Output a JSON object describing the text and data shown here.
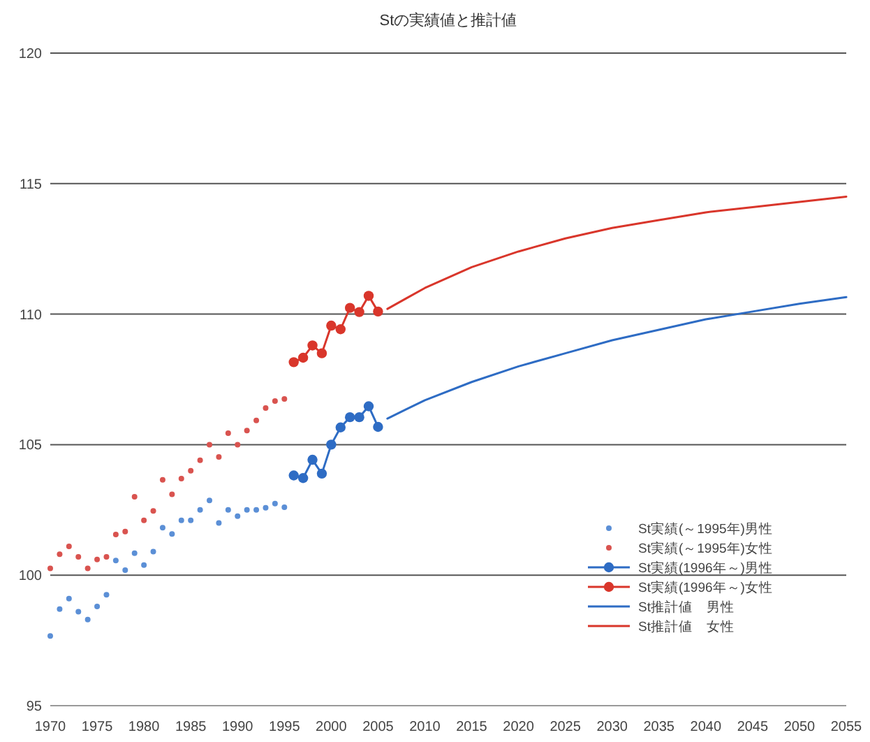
{
  "chart_data": {
    "type": "line",
    "title": "Stの実績値と推計値",
    "xlim": [
      1970,
      2055
    ],
    "xticks": [
      1970,
      1975,
      1980,
      1985,
      1990,
      1995,
      2000,
      2005,
      2010,
      2015,
      2020,
      2025,
      2030,
      2035,
      2040,
      2045,
      2050,
      2055
    ],
    "ylim": [
      95,
      120
    ],
    "yticks": [
      95,
      100,
      105,
      110,
      115,
      120
    ],
    "grid": "y",
    "legend": "bottom right",
    "series": [
      {
        "name": "St実績(～1995年)男性",
        "type": "scatter",
        "marker": "circle",
        "color": "#5b8fd6",
        "x": [
          1970,
          1971,
          1972,
          1973,
          1974,
          1975,
          1976,
          1977,
          1978,
          1979,
          1980,
          1981,
          1982,
          1983,
          1984,
          1985,
          1986,
          1987,
          1988,
          1989,
          1990,
          1991,
          1992,
          1993,
          1994,
          1995
        ],
        "values": [
          97.67,
          98.7,
          99.1,
          98.6,
          98.3,
          98.8,
          99.25,
          100.56,
          100.19,
          100.84,
          100.39,
          100.9,
          101.82,
          101.58,
          102.1,
          102.1,
          102.5,
          102.86,
          102.0,
          102.5,
          102.26,
          102.5,
          102.5,
          102.58,
          102.74,
          102.6
        ]
      },
      {
        "name": "St実績(～1995年)女性",
        "type": "scatter",
        "marker": "circle",
        "color": "#d9534f",
        "x": [
          1970,
          1971,
          1972,
          1973,
          1974,
          1975,
          1976,
          1977,
          1978,
          1979,
          1980,
          1981,
          1982,
          1983,
          1984,
          1985,
          1986,
          1987,
          1988,
          1989,
          1990,
          1991,
          1992,
          1993,
          1994,
          1995
        ],
        "values": [
          100.26,
          100.8,
          101.1,
          100.7,
          100.26,
          100.6,
          100.7,
          101.56,
          101.67,
          103.0,
          102.1,
          102.46,
          103.65,
          103.1,
          103.7,
          104.0,
          104.4,
          105.0,
          104.53,
          105.44,
          105.0,
          105.54,
          105.93,
          106.4,
          106.67,
          106.75
        ]
      },
      {
        "name": "St実績(1996年～)男性",
        "type": "line",
        "marker": "circle",
        "color": "#2e6cc4",
        "x": [
          1996,
          1997,
          1998,
          1999,
          2000,
          2001,
          2002,
          2003,
          2004,
          2005
        ],
        "values": [
          103.82,
          103.72,
          104.42,
          103.89,
          105.0,
          105.66,
          106.05,
          106.05,
          106.47,
          105.68
        ]
      },
      {
        "name": "St実績(1996年～)女性",
        "type": "line",
        "marker": "circle",
        "color": "#d9362b",
        "x": [
          1996,
          1997,
          1998,
          1999,
          2000,
          2001,
          2002,
          2003,
          2004,
          2005
        ],
        "values": [
          108.16,
          108.33,
          108.8,
          108.5,
          109.56,
          109.42,
          110.24,
          110.08,
          110.7,
          110.1
        ]
      },
      {
        "name": "St推計値　男性",
        "type": "line",
        "marker": "none",
        "color": "#2e6cc4",
        "x": [
          2006,
          2008,
          2010,
          2015,
          2020,
          2025,
          2030,
          2035,
          2040,
          2045,
          2050,
          2055
        ],
        "values": [
          106.0,
          106.35,
          106.7,
          107.4,
          108.0,
          108.5,
          109.0,
          109.4,
          109.8,
          110.1,
          110.4,
          110.65
        ]
      },
      {
        "name": "St推計値　女性",
        "type": "line",
        "marker": "none",
        "color": "#d9362b",
        "x": [
          2006,
          2008,
          2010,
          2015,
          2020,
          2025,
          2030,
          2035,
          2040,
          2045,
          2050,
          2055
        ],
        "values": [
          110.2,
          110.6,
          111.0,
          111.8,
          112.4,
          112.9,
          113.3,
          113.6,
          113.9,
          114.1,
          114.3,
          114.5
        ]
      }
    ]
  }
}
